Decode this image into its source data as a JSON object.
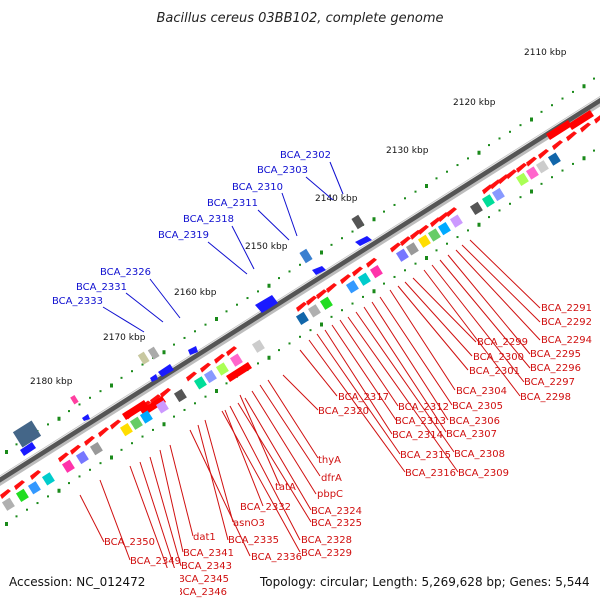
{
  "title": "Bacillus cereus 03BB102, complete genome",
  "footer": {
    "accession": "Accession: NC_012472",
    "topology": "Topology: circular; Length: 5,269,628 bp; Genes: 5,544"
  },
  "colors": {
    "blue_label": "#1010d0",
    "red_label": "#d01010",
    "tick_green": "#1a8a1a",
    "backbone": "#555555",
    "gene_red": "#ff0000"
  },
  "kbp_marks": [
    "2110 kbp",
    "2120 kbp",
    "2130 kbp",
    "2140 kbp",
    "2150 kbp",
    "2160 kbp",
    "2170 kbp",
    "2180 kbp"
  ],
  "blue_labels": [
    "BCA_2302",
    "BCA_2303",
    "BCA_2310",
    "BCA_2311",
    "BCA_2318",
    "BCA_2319",
    "BCA_2326",
    "BCA_2331",
    "BCA_2333"
  ],
  "red_labels": [
    "BCA_2291",
    "BCA_2292",
    "BCA_2294",
    "BCA_2295",
    "BCA_2296",
    "BCA_2297",
    "BCA_2298",
    "BCA_2299",
    "BCA_2300",
    "BCA_2301",
    "BCA_2304",
    "BCA_2305",
    "BCA_2306",
    "BCA_2307",
    "BCA_2308",
    "BCA_2309",
    "BCA_2312",
    "BCA_2313",
    "BCA_2314",
    "BCA_2315",
    "BCA_2316",
    "BCA_2317",
    "BCA_2320",
    "thyA",
    "dfrA",
    "tatA",
    "pbpC",
    "BCA_2324",
    "BCA_2325",
    "BCA_2332",
    "BCA_2328",
    "BCA_2329",
    "asnO3",
    "BCA_2335",
    "BCA_2336",
    "dat1",
    "BCA_2341",
    "BCA_2343",
    "BCA_2345",
    "BCA_2346",
    "BCA_2349",
    "BCA_2350"
  ]
}
